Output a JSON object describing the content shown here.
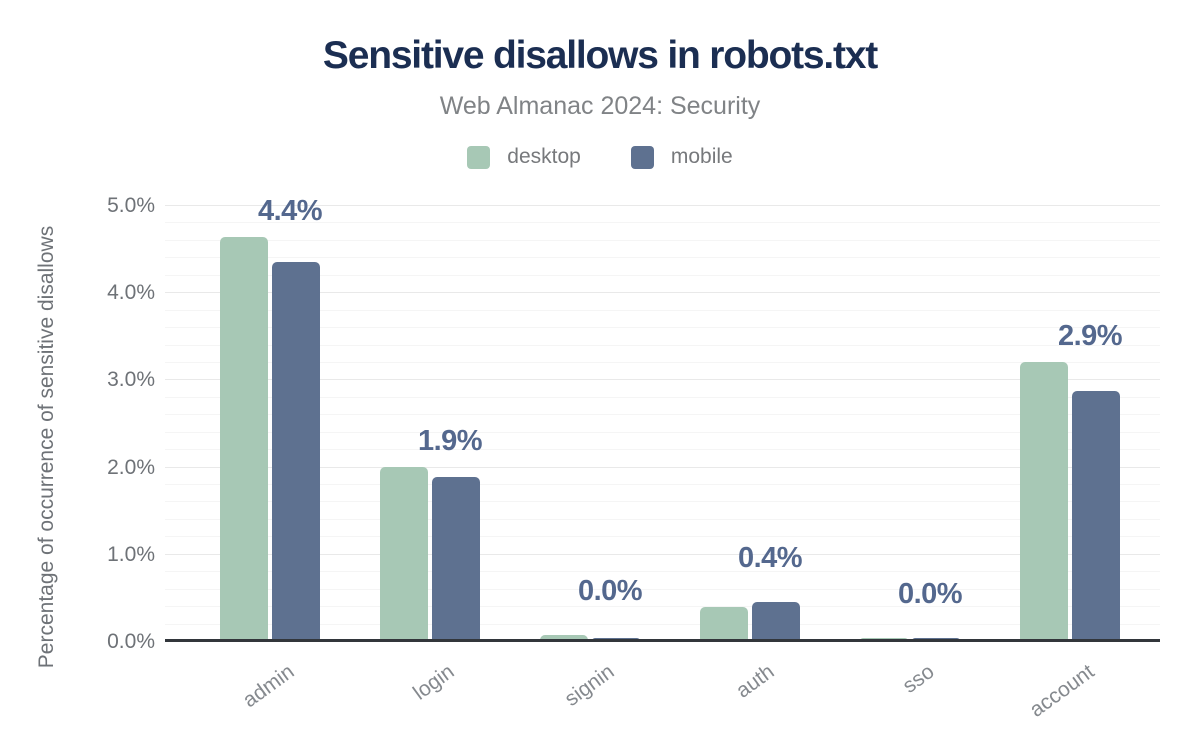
{
  "header": {
    "title": "Sensitive disallows in robots.txt",
    "subtitle": "Web Almanac 2024: Security"
  },
  "chart_data": {
    "type": "bar",
    "title": "Sensitive disallows in robots.txt",
    "subtitle": "Web Almanac 2024: Security",
    "categories": [
      "admin",
      "login",
      "signin",
      "auth",
      "sso",
      "account"
    ],
    "series": [
      {
        "name": "desktop",
        "color": "#a7c8b5",
        "values": [
          4.63,
          2.0,
          0.07,
          0.39,
          0.04,
          3.2
        ]
      },
      {
        "name": "mobile",
        "color": "#5e7190",
        "values": [
          4.35,
          1.88,
          0.04,
          0.45,
          0.03,
          2.87
        ]
      }
    ],
    "bar_labels": [
      "4.4%",
      "1.9%",
      "0.0%",
      "0.4%",
      "0.0%",
      "2.9%"
    ],
    "bar_labels_note": "label shown above each group equals mobile value rounded to 0.1%",
    "xlabel": "",
    "ylabel": "Percentage of occurrence of sensitive disallows",
    "ylim": [
      0,
      5
    ],
    "ytick_labels": [
      "0.0%",
      "1.0%",
      "2.0%",
      "3.0%",
      "4.0%",
      "5.0%"
    ],
    "grid": {
      "major_interval": 1.0,
      "minor_interval": 0.2,
      "orientation": "horizontal"
    },
    "legend_position": "top-center",
    "palette": {
      "desktop": "#a7c8b5",
      "mobile": "#5e7190",
      "title_text": "#1b2e52",
      "subtitle_text": "#808386",
      "axis_text": "#6e7277",
      "category_text": "#85898e",
      "data_label_text": "#54688e",
      "axis_line": "#32363b",
      "grid_major": "#e9e9e9",
      "grid_minor": "#f5f5f5",
      "background": "#ffffff"
    }
  }
}
